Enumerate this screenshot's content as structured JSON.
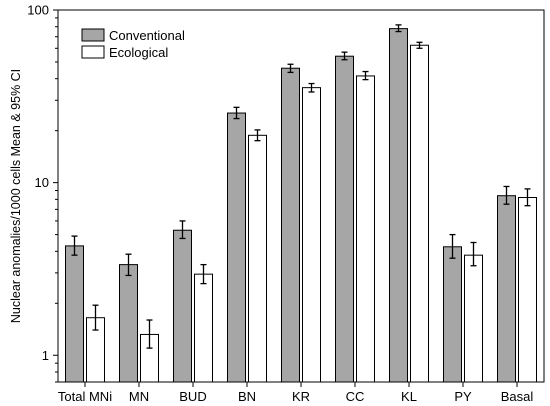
{
  "chart_data": {
    "type": "bar",
    "ylabel": "Nuclear anomalies/1000 cells Mean & 95% CI",
    "y_scale": "log",
    "ylim": [
      0.7,
      100
    ],
    "yticks": [
      1,
      10,
      100
    ],
    "ytick_labels": [
      "1",
      "10",
      "100"
    ],
    "grid": false,
    "legend_position": "top-left",
    "categories": [
      "Total MNi",
      "MN",
      "BUD",
      "BN",
      "KR",
      "CC",
      "KL",
      "PY",
      "Basal"
    ],
    "series": [
      {
        "name": "Conventional",
        "color": "#a6a6a6",
        "values": [
          4.3,
          3.35,
          5.3,
          25.3,
          46,
          54,
          78,
          4.25,
          8.4
        ],
        "ci_low": [
          3.8,
          2.9,
          4.75,
          23.5,
          43.5,
          51.5,
          75,
          3.65,
          7.5
        ],
        "ci_high": [
          4.9,
          3.85,
          6.0,
          27.3,
          48.5,
          57,
          82,
          5.0,
          9.5
        ]
      },
      {
        "name": "Ecological",
        "color": "#ffffff",
        "values": [
          1.65,
          1.32,
          2.95,
          18.8,
          35.5,
          41.5,
          62.5,
          3.8,
          8.2
        ],
        "ci_low": [
          1.4,
          1.1,
          2.6,
          17.5,
          33.5,
          39.5,
          60,
          3.3,
          7.35
        ],
        "ci_high": [
          1.95,
          1.6,
          3.35,
          20.2,
          37.5,
          44,
          65,
          4.5,
          9.2
        ]
      }
    ]
  }
}
